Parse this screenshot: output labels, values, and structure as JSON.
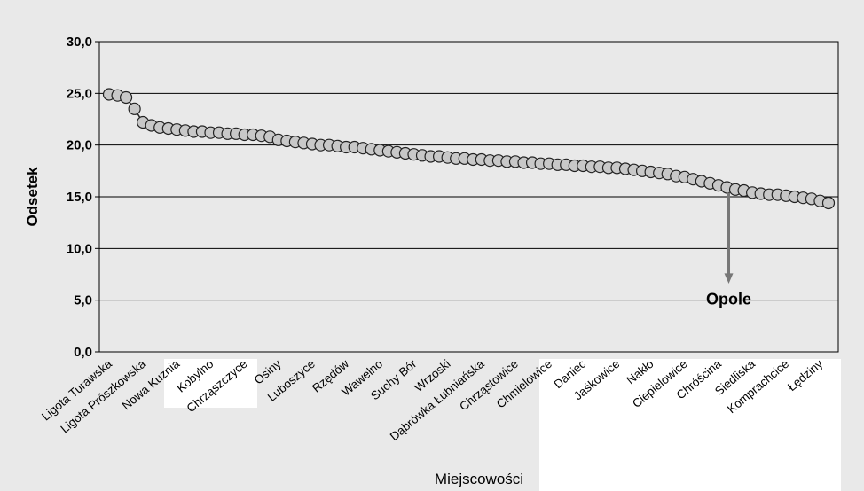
{
  "chart_data": {
    "type": "line",
    "xlabel": "Miejscowości",
    "ylabel": "Odsetek",
    "categories": [
      "Ligota Turawska",
      null,
      null,
      null,
      "Ligota Prószkowska",
      null,
      null,
      null,
      "Nowa Kuźnia",
      null,
      null,
      null,
      "Kobylno",
      null,
      null,
      null,
      "Chrząszczyce",
      null,
      null,
      null,
      "Osiny",
      null,
      null,
      null,
      "Luboszyce",
      null,
      null,
      null,
      "Rzędów",
      null,
      null,
      null,
      "Wawelno",
      null,
      null,
      null,
      "Suchy Bór",
      null,
      null,
      null,
      "Wrzoski",
      null,
      null,
      null,
      "Dąbrówka Łubniańska",
      null,
      null,
      null,
      "Chrząstowice",
      null,
      null,
      null,
      "Chmielowice",
      null,
      null,
      null,
      "Daniec",
      null,
      null,
      null,
      "Jaśkowice",
      null,
      null,
      null,
      "Nakło",
      null,
      null,
      null,
      "Ciepielowice",
      null,
      null,
      null,
      "Chróścina",
      null,
      null,
      null,
      "Siedliska",
      null,
      null,
      null,
      "Komprachcice",
      null,
      null,
      null,
      "Łędziny",
      null
    ],
    "values": [
      24.9,
      24.8,
      24.6,
      23.5,
      22.2,
      21.9,
      21.7,
      21.6,
      21.5,
      21.4,
      21.3,
      21.3,
      21.2,
      21.2,
      21.1,
      21.1,
      21.0,
      21.0,
      20.9,
      20.8,
      20.5,
      20.4,
      20.3,
      20.2,
      20.1,
      20.0,
      20.0,
      19.9,
      19.8,
      19.8,
      19.7,
      19.6,
      19.5,
      19.4,
      19.3,
      19.2,
      19.1,
      19.0,
      18.9,
      18.9,
      18.8,
      18.7,
      18.7,
      18.6,
      18.6,
      18.5,
      18.5,
      18.4,
      18.4,
      18.3,
      18.3,
      18.2,
      18.2,
      18.1,
      18.1,
      18.0,
      18.0,
      17.9,
      17.9,
      17.8,
      17.8,
      17.7,
      17.6,
      17.5,
      17.4,
      17.3,
      17.2,
      17.0,
      16.9,
      16.7,
      16.5,
      16.3,
      16.1,
      15.9,
      15.7,
      15.6,
      15.4,
      15.3,
      15.2,
      15.2,
      15.1,
      15.0,
      14.9,
      14.8,
      14.6,
      14.4
    ],
    "color": "#c8c8c8",
    "ylim": [
      0,
      30
    ],
    "yticks": [
      {
        "value": 0,
        "label": "0,0"
      },
      {
        "value": 5,
        "label": "5,0"
      },
      {
        "value": 10,
        "label": "10,0"
      },
      {
        "value": 15,
        "label": "15,0"
      },
      {
        "value": 20,
        "label": "20,0"
      },
      {
        "value": 25,
        "label": "25,0"
      },
      {
        "value": 30,
        "label": "30,0"
      }
    ],
    "grid": true,
    "annotation": {
      "text": "Opole",
      "index": 73
    }
  }
}
